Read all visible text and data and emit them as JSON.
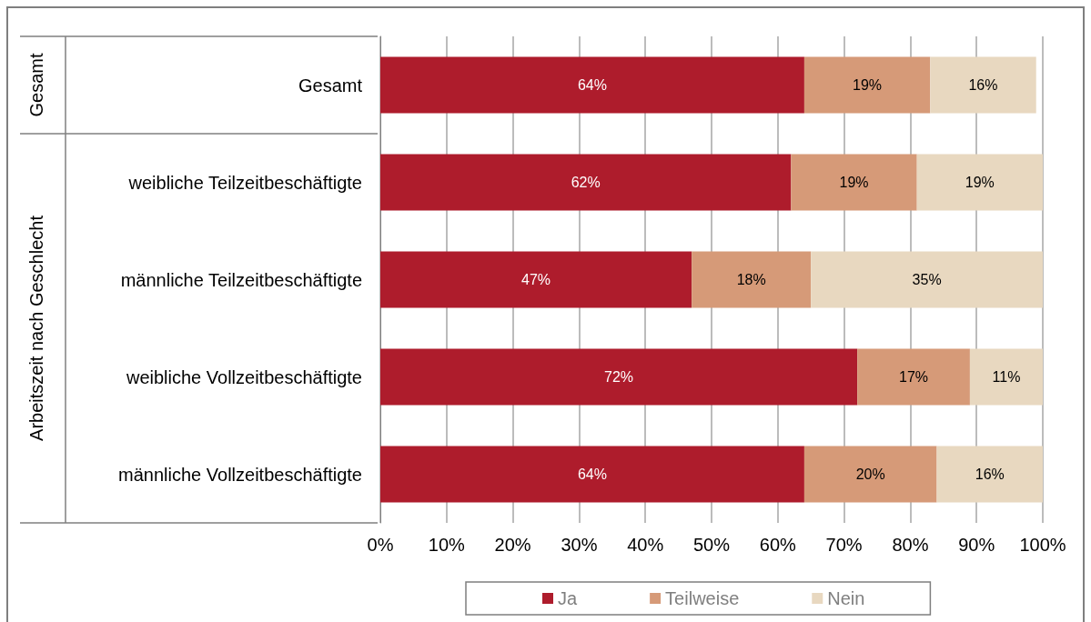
{
  "chart_data": {
    "type": "bar",
    "orientation": "horizontal",
    "stacked": true,
    "categories": [
      "Gesamt",
      "weibliche Teilzeitbeschäftigte",
      "männliche Teilzeitbeschäftigte",
      "weibliche Vollzeitbeschäftigte",
      "männliche Vollzeitbeschäftigte"
    ],
    "series": [
      {
        "name": "Ja",
        "color": "#ae1c2c",
        "values": [
          64,
          62,
          47,
          72,
          64
        ],
        "value_labels": [
          "64%",
          "62%",
          "47%",
          "72%",
          "64%"
        ]
      },
      {
        "name": "Teilweise",
        "color": "#d69a78",
        "values": [
          19,
          19,
          18,
          17,
          20
        ],
        "value_labels": [
          "19%",
          "19%",
          "18%",
          "17%",
          "20%"
        ]
      },
      {
        "name": "Nein",
        "color": "#e8d8c0",
        "values": [
          16,
          19,
          35,
          11,
          16
        ],
        "value_labels": [
          "16%",
          "19%",
          "35%",
          "11%",
          "16%"
        ]
      }
    ],
    "xlim": [
      0,
      100
    ],
    "xticks": [
      {
        "value": 0,
        "label": "0%"
      },
      {
        "value": 10,
        "label": "10%"
      },
      {
        "value": 20,
        "label": "20%"
      },
      {
        "value": 30,
        "label": "30%"
      },
      {
        "value": 40,
        "label": "40%"
      },
      {
        "value": 50,
        "label": "50%"
      },
      {
        "value": 60,
        "label": "60%"
      },
      {
        "value": 70,
        "label": "70%"
      },
      {
        "value": 80,
        "label": "80%"
      },
      {
        "value": 90,
        "label": "90%"
      },
      {
        "value": 100,
        "label": "100%"
      }
    ],
    "annotations": [
      "Gesamt",
      "Arbeitszeit nach Geschlecht"
    ],
    "grid": "x",
    "legend": "bottom"
  }
}
